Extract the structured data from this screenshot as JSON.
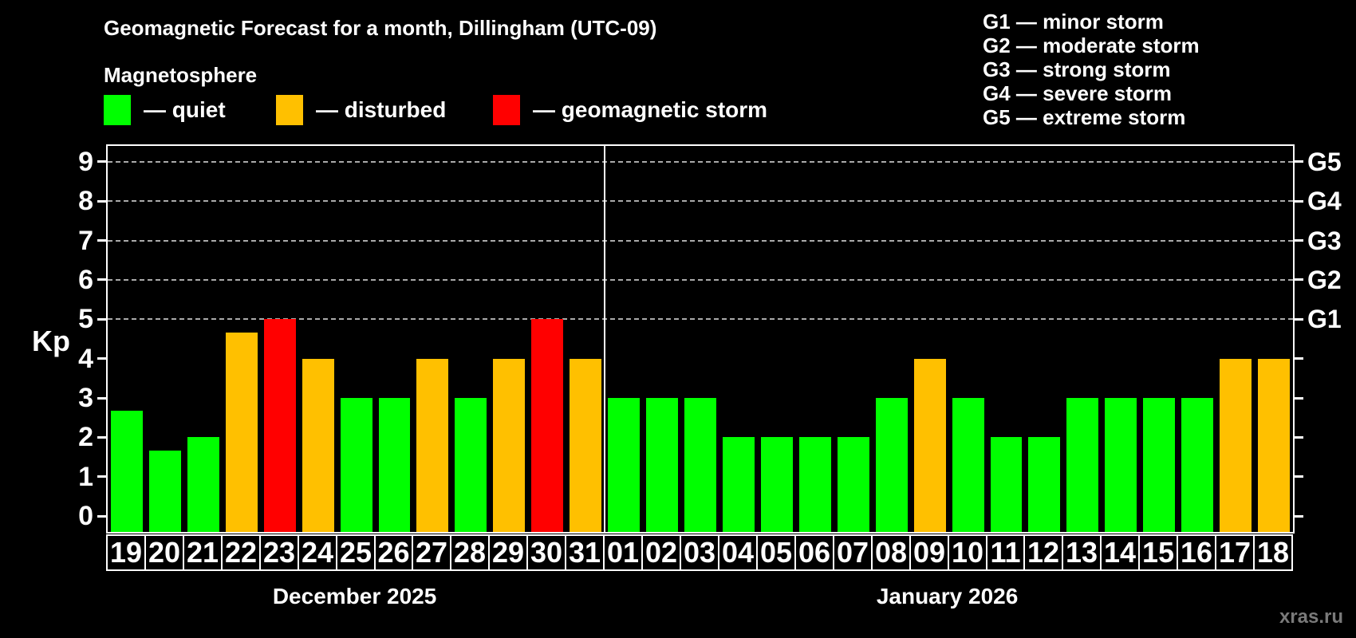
{
  "header": {
    "title": "Geomagnetic Forecast for a month, Dillingham (UTC-09)",
    "subtitle": "Magnetosphere"
  },
  "legend": {
    "items": [
      {
        "key": "quiet",
        "label": "— quiet",
        "color": "#00ff00"
      },
      {
        "key": "disturbed",
        "label": "— disturbed",
        "color": "#ffc000"
      },
      {
        "key": "storm",
        "label": "— geomagnetic storm",
        "color": "#ff0000"
      }
    ]
  },
  "g_scale_legend": {
    "items": [
      "G1 — minor storm",
      "G2 — moderate storm",
      "G3 — strong storm",
      "G4 — severe storm",
      "G5 — extreme storm"
    ]
  },
  "chart_data": {
    "type": "bar",
    "ylabel": "Kp",
    "ylim": [
      -0.4,
      9.4
    ],
    "y_ticks": [
      0,
      1,
      2,
      3,
      4,
      5,
      6,
      7,
      8,
      9
    ],
    "gridlines_at": [
      5,
      6,
      7,
      8,
      9
    ],
    "grid": true,
    "legend_position": "top-left",
    "right_axis": [
      {
        "label": "G1",
        "kp": 5
      },
      {
        "label": "G2",
        "kp": 6
      },
      {
        "label": "G3",
        "kp": 7
      },
      {
        "label": "G4",
        "kp": 8
      },
      {
        "label": "G5",
        "kp": 9
      }
    ],
    "months": [
      {
        "label": "December 2025",
        "days": [
          {
            "day": "19",
            "kp": 2.67,
            "status": "quiet"
          },
          {
            "day": "20",
            "kp": 1.67,
            "status": "quiet"
          },
          {
            "day": "21",
            "kp": 2,
            "status": "quiet"
          },
          {
            "day": "22",
            "kp": 4.67,
            "status": "disturbed"
          },
          {
            "day": "23",
            "kp": 5,
            "status": "storm"
          },
          {
            "day": "24",
            "kp": 4,
            "status": "disturbed"
          },
          {
            "day": "25",
            "kp": 3,
            "status": "quiet"
          },
          {
            "day": "26",
            "kp": 3,
            "status": "quiet"
          },
          {
            "day": "27",
            "kp": 4,
            "status": "disturbed"
          },
          {
            "day": "28",
            "kp": 3,
            "status": "quiet"
          },
          {
            "day": "29",
            "kp": 4,
            "status": "disturbed"
          },
          {
            "day": "30",
            "kp": 5,
            "status": "storm"
          },
          {
            "day": "31",
            "kp": 4,
            "status": "disturbed"
          }
        ]
      },
      {
        "label": "January 2026",
        "days": [
          {
            "day": "01",
            "kp": 3,
            "status": "quiet"
          },
          {
            "day": "02",
            "kp": 3,
            "status": "quiet"
          },
          {
            "day": "03",
            "kp": 3,
            "status": "quiet"
          },
          {
            "day": "04",
            "kp": 2,
            "status": "quiet"
          },
          {
            "day": "05",
            "kp": 2,
            "status": "quiet"
          },
          {
            "day": "06",
            "kp": 2,
            "status": "quiet"
          },
          {
            "day": "07",
            "kp": 2,
            "status": "quiet"
          },
          {
            "day": "08",
            "kp": 3,
            "status": "quiet"
          },
          {
            "day": "09",
            "kp": 4,
            "status": "disturbed"
          },
          {
            "day": "10",
            "kp": 3,
            "status": "quiet"
          },
          {
            "day": "11",
            "kp": 2,
            "status": "quiet"
          },
          {
            "day": "12",
            "kp": 2,
            "status": "quiet"
          },
          {
            "day": "13",
            "kp": 3,
            "status": "quiet"
          },
          {
            "day": "14",
            "kp": 3,
            "status": "quiet"
          },
          {
            "day": "15",
            "kp": 3,
            "status": "quiet"
          },
          {
            "day": "16",
            "kp": 3,
            "status": "quiet"
          },
          {
            "day": "17",
            "kp": 4,
            "status": "disturbed"
          },
          {
            "day": "18",
            "kp": 4,
            "status": "disturbed"
          }
        ]
      }
    ]
  },
  "watermark": "xras.ru",
  "colors": {
    "background": "#000000",
    "text": "#ffffff",
    "grid": "#aaaaaa",
    "axis": "#ffffff",
    "watermark": "#7a7a7a"
  }
}
